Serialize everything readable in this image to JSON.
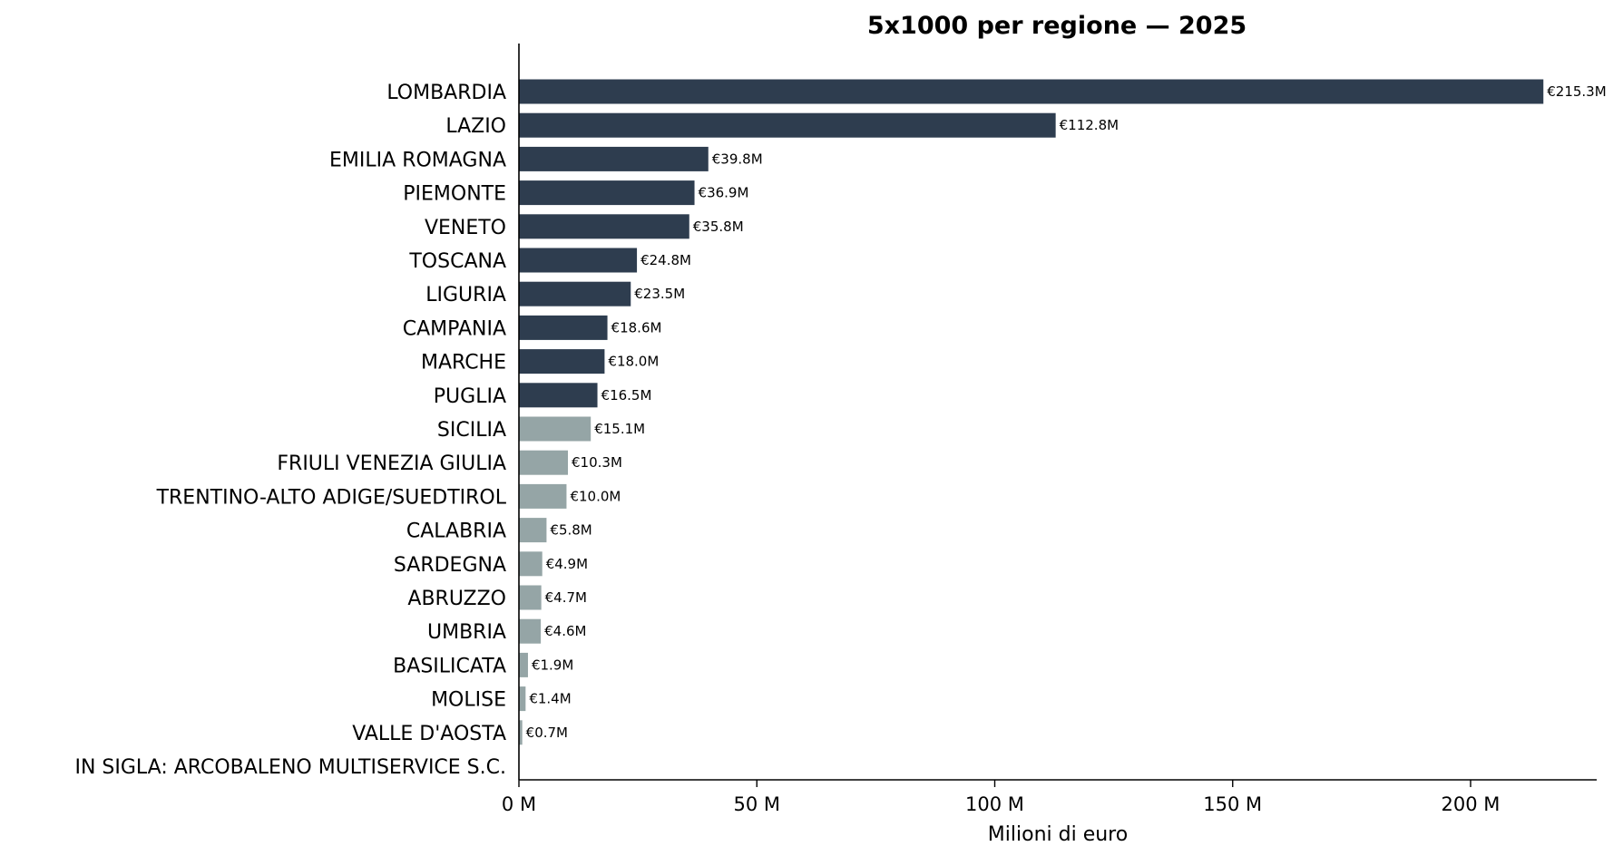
{
  "chart_data": {
    "type": "bar",
    "orientation": "horizontal",
    "title": "5x1000 per regione — 2025",
    "xlabel": "Milioni di euro",
    "ylabel": "",
    "xlim": [
      0,
      225
    ],
    "xticks": [
      0,
      50,
      100,
      150,
      200
    ],
    "xtick_labels": [
      "0 M",
      "50 M",
      "100 M",
      "150 M",
      "200 M"
    ],
    "grid": false,
    "legend": "none",
    "colors": {
      "top10": "#2e3d4f",
      "others": "#95a5a6"
    },
    "categories": [
      "LOMBARDIA",
      "LAZIO",
      "EMILIA ROMAGNA",
      "PIEMONTE",
      "VENETO",
      "TOSCANA",
      "LIGURIA",
      "CAMPANIA",
      "MARCHE",
      "PUGLIA",
      "SICILIA",
      "FRIULI VENEZIA GIULIA",
      "TRENTINO-ALTO ADIGE/SUEDTIROL",
      "CALABRIA",
      "SARDEGNA",
      "ABRUZZO",
      "UMBRIA",
      "BASILICATA",
      "MOLISE",
      "VALLE D'AOSTA",
      "IN SIGLA: ARCOBALENO MULTISERVICE S.C."
    ],
    "values": [
      215.3,
      112.8,
      39.8,
      36.9,
      35.8,
      24.8,
      23.5,
      18.6,
      18.0,
      16.5,
      15.1,
      10.3,
      10.0,
      5.8,
      4.9,
      4.7,
      4.6,
      1.9,
      1.4,
      0.7,
      0
    ],
    "value_labels": [
      "€215.3M",
      "€112.8M",
      "€39.8M",
      "€36.9M",
      "€35.8M",
      "€24.8M",
      "€23.5M",
      "€18.6M",
      "€18.0M",
      "€16.5M",
      "€15.1M",
      "€10.3M",
      "€10.0M",
      "€5.8M",
      "€4.9M",
      "€4.7M",
      "€4.6M",
      "€1.9M",
      "€1.4M",
      "€0.7M",
      ""
    ],
    "highlight_top_n": 10
  }
}
